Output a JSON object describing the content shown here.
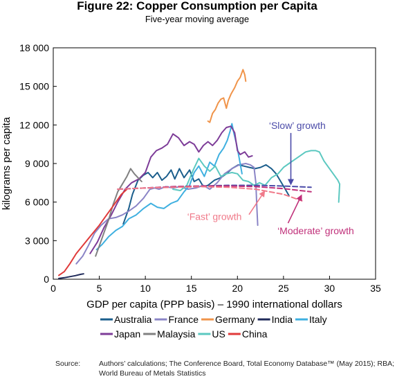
{
  "chart_data": {
    "type": "line",
    "title": "Figure 22: Copper Consumption per Capita",
    "subtitle": "Five-year moving average",
    "xlabel": "GDP per capita (PPP basis) – 1990 international dollars",
    "ylabel": "kilograms per capita",
    "xlim": [
      0,
      35
    ],
    "ylim": [
      0,
      18000
    ],
    "x_ticks": [
      0,
      5,
      10,
      15,
      20,
      25,
      30,
      35
    ],
    "x_tick_labels": [
      "0",
      "5",
      "10",
      "15",
      "20",
      "25",
      "30",
      "35"
    ],
    "y_ticks": [
      0,
      3000,
      6000,
      9000,
      12000,
      15000,
      18000
    ],
    "y_tick_labels": [
      "0",
      "3 000",
      "6 000",
      "9 000",
      "12 000",
      "15 000",
      "18 000"
    ],
    "series": [
      {
        "name": "Australia",
        "color": "#1b5e8c",
        "style": "solid",
        "points": [
          [
            7.6,
            4300
          ],
          [
            8.2,
            5500
          ],
          [
            8.6,
            6600
          ],
          [
            9.2,
            7700
          ],
          [
            9.8,
            8100
          ],
          [
            10.3,
            8300
          ],
          [
            10.8,
            7900
          ],
          [
            11.3,
            8300
          ],
          [
            11.8,
            7700
          ],
          [
            12.3,
            8000
          ],
          [
            12.8,
            8500
          ],
          [
            13.2,
            7800
          ],
          [
            13.7,
            8600
          ],
          [
            14.2,
            7900
          ],
          [
            14.8,
            8500
          ],
          [
            15.3,
            7600
          ],
          [
            15.8,
            7800
          ],
          [
            16.3,
            7200
          ],
          [
            16.8,
            7300
          ],
          [
            17.5,
            7700
          ],
          [
            18.2,
            7900
          ],
          [
            18.8,
            8200
          ],
          [
            19.4,
            8600
          ],
          [
            20.1,
            8900
          ],
          [
            20.7,
            8800
          ],
          [
            21.3,
            8700
          ],
          [
            21.9,
            8600
          ],
          [
            22.5,
            8700
          ],
          [
            23.1,
            8900
          ],
          [
            23.7,
            8600
          ],
          [
            24.2,
            8200
          ],
          [
            24.7,
            7600
          ],
          [
            25.2,
            7000
          ],
          [
            25.6,
            6500
          ]
        ]
      },
      {
        "name": "France",
        "color": "#8a84c6",
        "style": "solid",
        "points": [
          [
            2.5,
            1200
          ],
          [
            3.2,
            1800
          ],
          [
            3.8,
            2600
          ],
          [
            4.5,
            3600
          ],
          [
            5.2,
            4200
          ],
          [
            6.0,
            4700
          ],
          [
            6.8,
            4800
          ],
          [
            7.5,
            5000
          ],
          [
            8.2,
            5300
          ],
          [
            9.0,
            5700
          ],
          [
            9.8,
            6300
          ],
          [
            10.5,
            7000
          ],
          [
            11.0,
            7100
          ],
          [
            11.5,
            7000
          ],
          [
            12.2,
            7200
          ],
          [
            13.0,
            7100
          ],
          [
            13.8,
            7200
          ],
          [
            14.6,
            7000
          ],
          [
            15.5,
            7100
          ],
          [
            16.3,
            7300
          ],
          [
            17.0,
            7000
          ],
          [
            17.8,
            7500
          ],
          [
            18.6,
            8200
          ],
          [
            19.4,
            8600
          ],
          [
            20.2,
            8900
          ],
          [
            20.9,
            9000
          ],
          [
            21.4,
            8900
          ],
          [
            21.8,
            8700
          ],
          [
            22.0,
            7500
          ],
          [
            22.1,
            5800
          ],
          [
            22.2,
            4200
          ]
        ]
      },
      {
        "name": "Germany",
        "color": "#f0944a",
        "style": "solid",
        "points": [
          [
            16.8,
            12300
          ],
          [
            17.0,
            12200
          ],
          [
            17.3,
            12900
          ],
          [
            17.6,
            13200
          ],
          [
            17.9,
            13700
          ],
          [
            18.2,
            14000
          ],
          [
            18.5,
            14100
          ],
          [
            18.8,
            13300
          ],
          [
            19.0,
            13900
          ],
          [
            19.3,
            14400
          ],
          [
            19.7,
            14900
          ],
          [
            20.0,
            15400
          ],
          [
            20.3,
            15700
          ],
          [
            20.6,
            16300
          ],
          [
            20.8,
            15900
          ],
          [
            20.9,
            15400
          ]
        ]
      },
      {
        "name": "India",
        "color": "#1f2a5a",
        "style": "solid",
        "points": [
          [
            0.6,
            60
          ],
          [
            1.2,
            120
          ],
          [
            1.8,
            200
          ],
          [
            2.4,
            280
          ],
          [
            3.0,
            380
          ],
          [
            3.3,
            420
          ]
        ]
      },
      {
        "name": "Italy",
        "color": "#3fb0e0",
        "style": "solid",
        "points": [
          [
            4.7,
            2300
          ],
          [
            5.3,
            2700
          ],
          [
            6.0,
            3300
          ],
          [
            6.8,
            3800
          ],
          [
            7.5,
            4100
          ],
          [
            8.2,
            4700
          ],
          [
            9.0,
            5000
          ],
          [
            9.8,
            5500
          ],
          [
            10.6,
            5900
          ],
          [
            11.3,
            5600
          ],
          [
            12.0,
            5500
          ],
          [
            12.8,
            5900
          ],
          [
            13.5,
            6100
          ],
          [
            14.2,
            6800
          ],
          [
            14.8,
            7300
          ],
          [
            15.3,
            8300
          ],
          [
            15.8,
            8800
          ],
          [
            16.4,
            8000
          ],
          [
            17.0,
            9100
          ],
          [
            17.5,
            8800
          ],
          [
            18.0,
            9700
          ],
          [
            18.5,
            10200
          ],
          [
            18.9,
            10800
          ],
          [
            19.2,
            11500
          ],
          [
            19.4,
            12100
          ],
          [
            19.6,
            11400
          ],
          [
            19.9,
            10500
          ],
          [
            20.2,
            9400
          ],
          [
            20.5,
            8200
          ]
        ]
      },
      {
        "name": "Japan",
        "color": "#7d3c98",
        "style": "solid",
        "points": [
          [
            4.0,
            2000
          ],
          [
            4.8,
            2900
          ],
          [
            5.5,
            4000
          ],
          [
            6.3,
            5000
          ],
          [
            7.0,
            6000
          ],
          [
            7.8,
            7000
          ],
          [
            8.5,
            7500
          ],
          [
            9.3,
            7800
          ],
          [
            10.0,
            8300
          ],
          [
            10.6,
            9500
          ],
          [
            11.2,
            10000
          ],
          [
            11.8,
            10200
          ],
          [
            12.4,
            10500
          ],
          [
            13.0,
            11300
          ],
          [
            13.6,
            11000
          ],
          [
            14.2,
            10400
          ],
          [
            14.8,
            10700
          ],
          [
            15.3,
            10500
          ],
          [
            15.8,
            9900
          ],
          [
            16.3,
            10400
          ],
          [
            16.8,
            10700
          ],
          [
            17.3,
            10400
          ],
          [
            17.8,
            10800
          ],
          [
            18.3,
            11400
          ],
          [
            18.8,
            11800
          ],
          [
            19.3,
            11900
          ],
          [
            19.7,
            11400
          ],
          [
            20.0,
            10000
          ],
          [
            20.3,
            9700
          ],
          [
            20.8,
            9900
          ],
          [
            21.2,
            9500
          ],
          [
            21.6,
            9600
          ]
        ]
      },
      {
        "name": "Malaysia",
        "color": "#808080",
        "style": "solid",
        "points": [
          [
            4.6,
            1800
          ],
          [
            5.0,
            2600
          ],
          [
            5.5,
            3600
          ],
          [
            6.0,
            4600
          ],
          [
            6.5,
            5800
          ],
          [
            7.0,
            6800
          ],
          [
            7.5,
            7400
          ],
          [
            8.0,
            8000
          ],
          [
            8.4,
            8600
          ],
          [
            8.8,
            8200
          ],
          [
            9.2,
            7900
          ],
          [
            9.6,
            7600
          ]
        ]
      },
      {
        "name": "US",
        "color": "#5bc8c0",
        "style": "solid",
        "points": [
          [
            13.0,
            7000
          ],
          [
            13.8,
            6900
          ],
          [
            14.5,
            7300
          ],
          [
            15.2,
            8500
          ],
          [
            15.8,
            9400
          ],
          [
            16.4,
            8800
          ],
          [
            17.0,
            8400
          ],
          [
            17.6,
            8800
          ],
          [
            18.2,
            8000
          ],
          [
            18.8,
            8200
          ],
          [
            19.4,
            8300
          ],
          [
            20.0,
            8200
          ],
          [
            20.6,
            7700
          ],
          [
            21.2,
            7600
          ],
          [
            21.8,
            7300
          ],
          [
            22.4,
            7500
          ],
          [
            23.0,
            7300
          ],
          [
            23.7,
            7900
          ],
          [
            24.4,
            8200
          ],
          [
            25.0,
            8700
          ],
          [
            25.6,
            9000
          ],
          [
            26.2,
            9300
          ],
          [
            26.8,
            9600
          ],
          [
            27.4,
            9900
          ],
          [
            28.0,
            10000
          ],
          [
            28.5,
            10000
          ],
          [
            28.9,
            9900
          ],
          [
            29.4,
            9200
          ],
          [
            30.0,
            8600
          ],
          [
            30.5,
            8100
          ],
          [
            30.9,
            7700
          ],
          [
            31.1,
            7400
          ],
          [
            31.0,
            6000
          ]
        ]
      },
      {
        "name": "China",
        "color": "#e03a3a",
        "style": "solid",
        "points": [
          [
            0.6,
            300
          ],
          [
            1.2,
            600
          ],
          [
            1.8,
            1200
          ],
          [
            2.5,
            2000
          ],
          [
            3.3,
            2700
          ],
          [
            4.2,
            3500
          ],
          [
            5.0,
            4200
          ],
          [
            5.8,
            5000
          ],
          [
            6.6,
            5800
          ],
          [
            7.4,
            6600
          ],
          [
            8.0,
            7000
          ]
        ]
      }
    ],
    "trend_lines": [
      {
        "name": "Slow growth",
        "color": "#4a4aa8",
        "style": "dashed",
        "points": [
          [
            7.0,
            7000
          ],
          [
            10.0,
            7100
          ],
          [
            13.0,
            7200
          ],
          [
            16.0,
            7250
          ],
          [
            19.0,
            7300
          ],
          [
            22.0,
            7300
          ],
          [
            25.0,
            7250
          ],
          [
            28.0,
            7150
          ]
        ]
      },
      {
        "name": "Moderate growth",
        "color": "#c0307a",
        "style": "dashed",
        "points": [
          [
            7.0,
            7000
          ],
          [
            10.0,
            7100
          ],
          [
            13.0,
            7200
          ],
          [
            16.0,
            7250
          ],
          [
            19.0,
            7250
          ],
          [
            22.0,
            7200
          ],
          [
            25.0,
            7050
          ],
          [
            28.0,
            6800
          ]
        ]
      },
      {
        "name": "Fast growth",
        "color": "#f07a8a",
        "style": "dashed",
        "points": [
          [
            7.0,
            7000
          ],
          [
            10.0,
            7100
          ],
          [
            13.0,
            7150
          ],
          [
            16.0,
            7200
          ],
          [
            19.0,
            7150
          ],
          [
            22.0,
            7000
          ],
          [
            25.0,
            6600
          ],
          [
            27.0,
            6100
          ]
        ]
      }
    ],
    "annotations": [
      {
        "text": "‘Slow’ growth",
        "color": "#4a4aa8",
        "at": [
          26.5,
          11700
        ],
        "arrow_to": [
          25.8,
          7300
        ]
      },
      {
        "text": "‘Fast’ growth",
        "color": "#f07a8a",
        "at": [
          17.5,
          4600
        ],
        "arrow_to": [
          23.0,
          6900
        ]
      },
      {
        "text": "‘Moderate’ growth",
        "color": "#c0307a",
        "at": [
          28.5,
          3500
        ],
        "arrow_to": [
          27.0,
          6600
        ]
      }
    ],
    "legend": [
      "Australia",
      "France",
      "Germany",
      "India",
      "Italy",
      "Japan",
      "Malaysia",
      "US",
      "China"
    ]
  },
  "source": {
    "label": "Source:",
    "text": "Authors’ calculations; The Conference Board, Total Economy Database™ (May 2015); RBA; World Bureau of Metals Statistics"
  }
}
